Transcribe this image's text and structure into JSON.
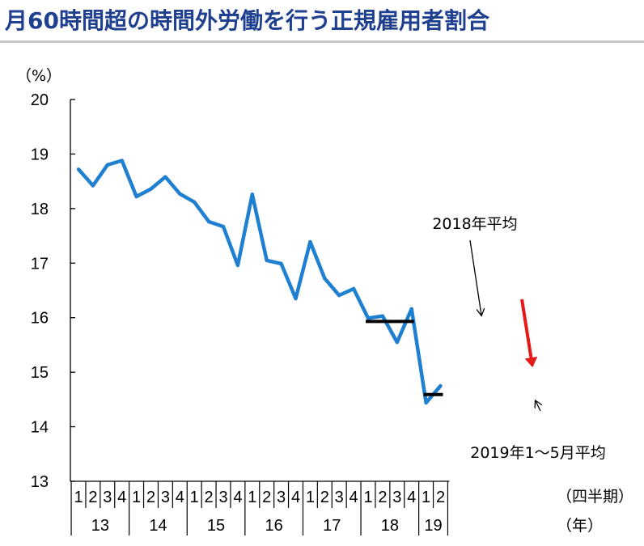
{
  "title": "月60時間超の時間外労働を行う正規雇用者割合",
  "chart_data": {
    "type": "line",
    "title": "月60時間超の時間外労働を行う正規雇用者割合",
    "ylabel": "（%）",
    "ylim": [
      13,
      20
    ],
    "yticks": [
      "20",
      "19",
      "18",
      "17",
      "16",
      "15",
      "14",
      "13"
    ],
    "quarters": [
      "1",
      "2",
      "3",
      "4",
      "1",
      "2",
      "3",
      "4",
      "1",
      "2",
      "3",
      "4",
      "1",
      "2",
      "3",
      "4",
      "1",
      "2",
      "3",
      "4",
      "1",
      "2",
      "3",
      "4",
      "1",
      "2"
    ],
    "years": [
      "13",
      "14",
      "15",
      "16",
      "17",
      "18",
      "19"
    ],
    "x_unit_quarter": "（四半期）",
    "x_unit_year": "（年）",
    "series": [
      {
        "color": "#1f7fd0",
        "values": [
          18.72,
          18.42,
          18.8,
          18.88,
          18.22,
          18.36,
          18.58,
          18.27,
          18.12,
          17.76,
          17.67,
          16.96,
          18.26,
          17.05,
          16.99,
          16.35,
          17.39,
          16.72,
          16.41,
          16.53,
          15.99,
          16.03,
          15.55,
          16.16,
          14.44,
          14.75
        ]
      }
    ],
    "annotations": {
      "avg_2018": {
        "label": "2018年平均",
        "value": 15.93,
        "color": "#000000"
      },
      "avg_2019": {
        "label": "2019年1〜5月平均",
        "value": 14.59,
        "color": "#000000"
      },
      "down_arrow_color": "#e61919"
    }
  }
}
